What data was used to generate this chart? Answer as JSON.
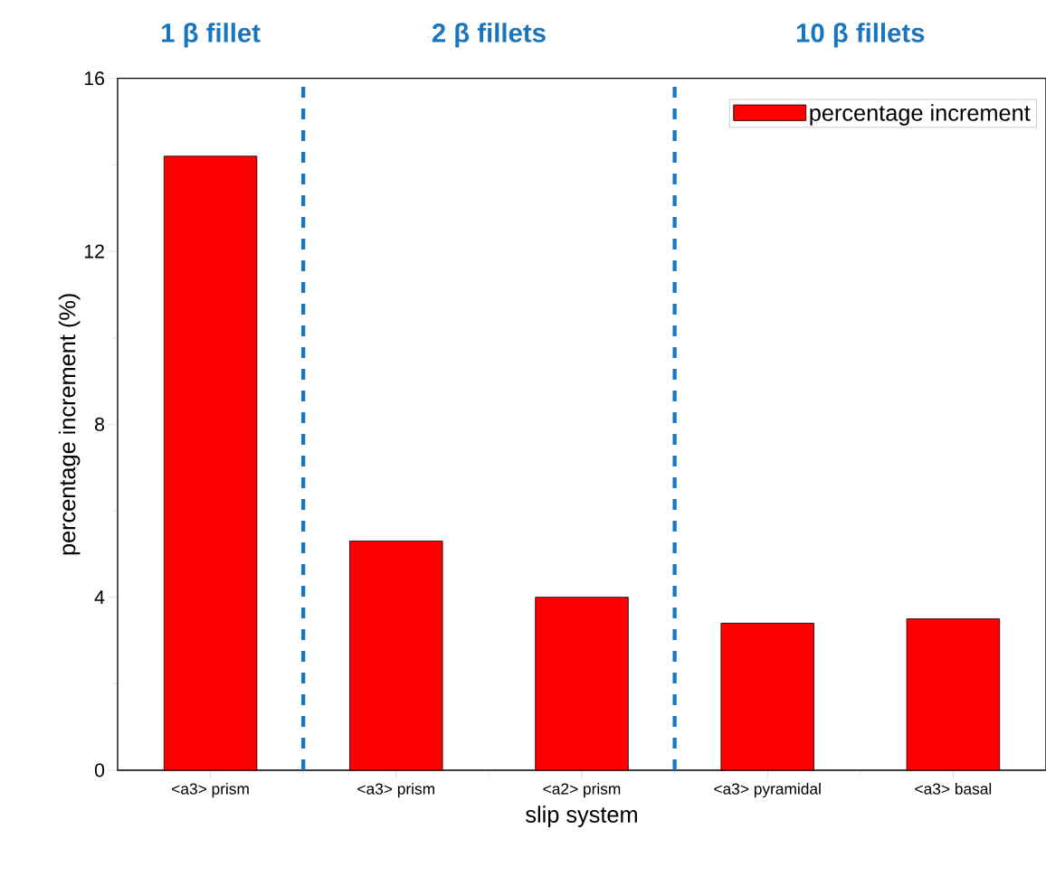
{
  "chart_data": {
    "type": "bar",
    "xlabel": "slip system",
    "ylabel": "percentage increment  (%)",
    "categories": [
      "<a3> prism",
      "<a3> prism",
      "<a2> prism",
      "<a3> pyramidal",
      "<a3> basal"
    ],
    "series": [
      {
        "name": "percentage increment",
        "color": "#ff0000",
        "values": [
          14.2,
          5.3,
          4.0,
          3.4,
          3.5
        ]
      }
    ],
    "ylim": [
      0,
      16
    ],
    "yticks": [
      0,
      4,
      8,
      12,
      16
    ],
    "annotations": [
      "1 β fillet",
      "2 β fillets",
      "10 β fillets"
    ],
    "legend": "top right",
    "grid": false
  }
}
